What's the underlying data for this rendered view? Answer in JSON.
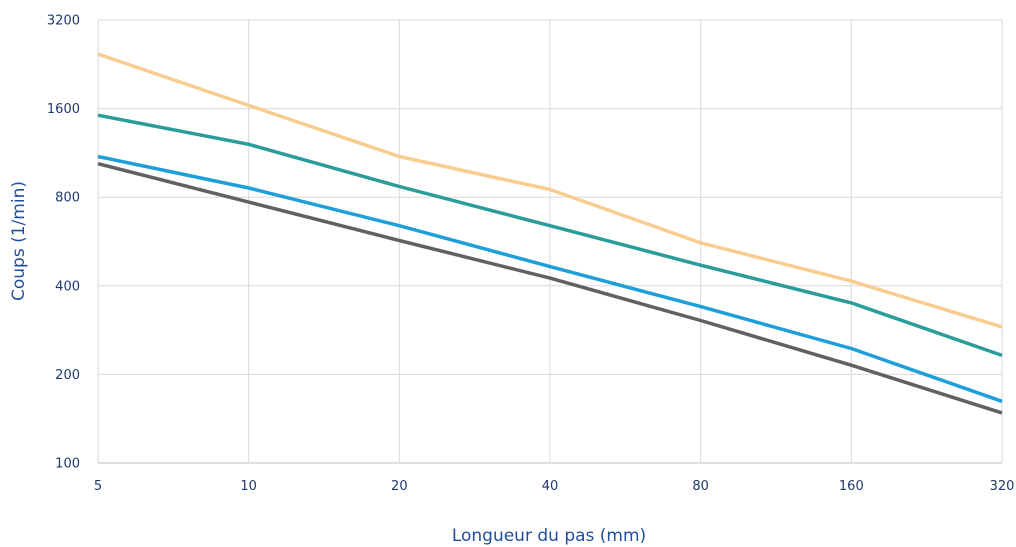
{
  "chart_data": {
    "type": "line",
    "xlabel": "Longueur du pas (mm)",
    "ylabel": "Coups (1/min)",
    "x_scale": "log2",
    "y_scale": "log2",
    "xlim": [
      5,
      320
    ],
    "ylim": [
      100,
      3200
    ],
    "x_ticks": [
      "5",
      "10",
      "20",
      "40",
      "80",
      "160",
      "320"
    ],
    "y_ticks": [
      "100",
      "200",
      "400",
      "800",
      "1600",
      "3200"
    ],
    "grid": true,
    "x": [
      5,
      10,
      20,
      40,
      80,
      160,
      320
    ],
    "series": [
      {
        "color": "#f9cd8f",
        "values": [
          2450,
          1640,
          1100,
          850,
          560,
          415,
          290
        ]
      },
      {
        "color": "#2a9d9a",
        "values": [
          1520,
          1210,
          870,
          640,
          470,
          350,
          232
        ]
      },
      {
        "color": "#1f9fda",
        "values": [
          1100,
          860,
          640,
          465,
          340,
          245,
          162
        ]
      },
      {
        "color": "#616161",
        "values": [
          1040,
          770,
          570,
          425,
          305,
          215,
          148
        ]
      }
    ]
  }
}
